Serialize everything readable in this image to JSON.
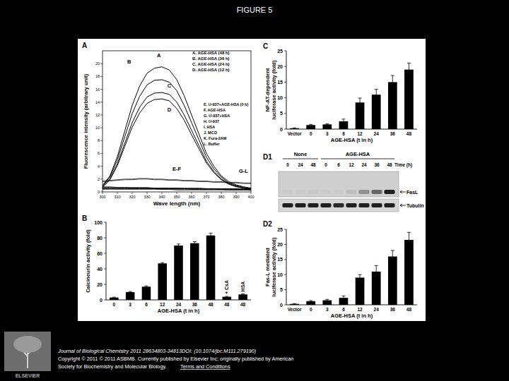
{
  "page": {
    "title": "FIGURE 5",
    "footer": [
      "Journal of Biological Chemistry 2011 28634803-34813DOI: (10.1074/jbc.M111.279190)",
      "Copyright © 2011 © 2011 ASBMB. Currently published by Elsevier Inc; originally published by American",
      "Society for Biochemistry and Molecular Biology."
    ],
    "footer_link": "Terms and Conditions",
    "logo_text": "ELSEVIER"
  },
  "chart_data": [
    {
      "type": "line",
      "panel": "A",
      "color": "#000000",
      "x_label": "Wave length (nm)",
      "y_label": "Fluorescence intensity (arbitrary unit)",
      "x": [
        300,
        305,
        310,
        315,
        320,
        325,
        330,
        335,
        340,
        345,
        350,
        355,
        360,
        365,
        370,
        375,
        380,
        385,
        390,
        395,
        400
      ],
      "xlim": [
        300,
        400
      ],
      "xticks": [
        300,
        310,
        320,
        330,
        340,
        350,
        360,
        370,
        380,
        390,
        400
      ],
      "ylim": [
        0,
        22
      ],
      "yticks": [
        0,
        2,
        4,
        6,
        8,
        10,
        12,
        14,
        16,
        18,
        20
      ],
      "series": [
        {
          "name": "A. AGE-HSA (48 h)",
          "values": [
            1.0,
            2.5,
            5.5,
            9.5,
            13.5,
            16.5,
            18.5,
            19.3,
            19.5,
            19.0,
            17.5,
            15.0,
            12.0,
            9.0,
            6.0,
            4.0,
            2.5,
            1.6,
            1.1,
            0.8,
            0.6
          ]
        },
        {
          "name": "B. AGE-HSA (36 h)",
          "values": [
            0.9,
            2.3,
            5.0,
            8.6,
            12.2,
            14.9,
            16.7,
            17.4,
            17.5,
            17.1,
            15.8,
            13.5,
            10.8,
            8.1,
            5.4,
            3.6,
            2.3,
            1.4,
            1.0,
            0.7,
            0.5
          ]
        },
        {
          "name": "C. AGE-HSA (24 h)",
          "values": [
            0.8,
            2.0,
            4.4,
            7.6,
            10.8,
            13.2,
            14.8,
            15.4,
            15.5,
            15.2,
            14.0,
            12.0,
            9.6,
            7.2,
            4.8,
            3.2,
            2.0,
            1.3,
            0.9,
            0.6,
            0.5
          ]
        },
        {
          "name": "D. AGE-HSA (12 h)",
          "values": [
            0.7,
            1.9,
            4.1,
            7.1,
            10.1,
            12.3,
            13.8,
            14.4,
            14.5,
            14.2,
            13.0,
            11.2,
            8.9,
            6.7,
            4.5,
            3.0,
            1.9,
            1.2,
            0.8,
            0.6,
            0.4
          ]
        },
        {
          "name": "E. U-937+AGE-HSA (0 h)",
          "values": [
            1.7,
            1.8,
            1.9,
            2.0,
            2.0,
            2.1,
            2.1,
            2.0,
            2.0,
            1.9,
            1.9,
            1.8,
            1.8,
            1.7,
            1.7,
            1.6,
            1.6,
            1.5,
            1.5,
            1.4,
            1.4
          ]
        },
        {
          "name": "F. AGE-HSA",
          "values": [
            1.6,
            1.7,
            1.8,
            1.9,
            1.9,
            2.0,
            2.0,
            1.9,
            1.9,
            1.8,
            1.8,
            1.7,
            1.7,
            1.6,
            1.6,
            1.5,
            1.5,
            1.4,
            1.4,
            1.3,
            1.3
          ]
        },
        {
          "name": "G. U-937+HSA",
          "values": [
            0.8,
            0.8,
            0.7,
            0.7,
            0.7,
            0.7,
            0.7,
            0.6,
            0.6,
            0.6,
            0.6,
            0.6,
            0.6,
            0.6,
            0.5,
            0.5,
            0.5,
            0.5,
            0.5,
            0.5,
            0.5
          ]
        },
        {
          "name": "H. U-937",
          "values": [
            0.7,
            0.7,
            0.7,
            0.7,
            0.6,
            0.6,
            0.6,
            0.6,
            0.6,
            0.6,
            0.6,
            0.5,
            0.5,
            0.5,
            0.5,
            0.5,
            0.5,
            0.5,
            0.5,
            0.4,
            0.4
          ]
        },
        {
          "name": "I. HSA",
          "values": [
            0.6,
            0.6,
            0.6,
            0.6,
            0.6,
            0.6,
            0.6,
            0.5,
            0.5,
            0.5,
            0.5,
            0.5,
            0.5,
            0.5,
            0.5,
            0.5,
            0.4,
            0.4,
            0.4,
            0.4,
            0.4
          ]
        },
        {
          "name": "J. MCO",
          "values": [
            0.6,
            0.6,
            0.5,
            0.5,
            0.5,
            0.5,
            0.5,
            0.5,
            0.5,
            0.5,
            0.5,
            0.5,
            0.4,
            0.4,
            0.4,
            0.4,
            0.4,
            0.4,
            0.4,
            0.4,
            0.4
          ]
        },
        {
          "name": "K. Fura-2AM",
          "values": [
            0.5,
            0.5,
            0.5,
            0.5,
            0.5,
            0.5,
            0.5,
            0.5,
            0.4,
            0.4,
            0.4,
            0.4,
            0.4,
            0.4,
            0.4,
            0.4,
            0.4,
            0.3,
            0.3,
            0.3,
            0.3
          ]
        },
        {
          "name": "L. Buffer",
          "values": [
            0.4,
            0.4,
            0.4,
            0.4,
            0.4,
            0.4,
            0.4,
            0.4,
            0.4,
            0.4,
            0.3,
            0.3,
            0.3,
            0.3,
            0.3,
            0.3,
            0.3,
            0.3,
            0.3,
            0.3,
            0.3
          ]
        }
      ],
      "annotations": [
        {
          "text": "A",
          "x": 338,
          "y": 21
        },
        {
          "text": "B",
          "x": 318,
          "y": 20
        },
        {
          "text": "C",
          "x": 345,
          "y": 16.3
        },
        {
          "text": "D",
          "x": 345,
          "y": 12.5
        },
        {
          "text": "E-F",
          "x": 350,
          "y": 3.3
        },
        {
          "text": "G-L",
          "x": 395,
          "y": 3.0
        }
      ]
    },
    {
      "type": "bar",
      "panel": "B",
      "color": "#000000",
      "x_label": "AGE-HSA (t in h)",
      "y_label": "Calcineurin activity (fold)",
      "categories": [
        "0",
        "3",
        "6",
        "12",
        "24",
        "36",
        "48",
        "48",
        "48"
      ],
      "values": [
        3,
        10,
        17,
        47,
        70,
        73,
        83,
        4,
        7
      ],
      "errors": [
        0.5,
        0.8,
        1,
        1,
        2,
        2,
        3,
        0.5,
        0.8
      ],
      "ylim": [
        0,
        100
      ],
      "yticks": [
        0,
        20,
        40,
        60,
        80,
        100
      ],
      "annotations": [
        {
          "text": "+ CsA",
          "index": 7
        },
        {
          "text": "HSA",
          "index": 8
        }
      ]
    },
    {
      "type": "bar",
      "panel": "C",
      "color": "#000000",
      "x_label": "AGE-HSA (t in h)",
      "y_label": [
        "NF-AT-dependent",
        "luciferase activity (fold)"
      ],
      "categories": [
        "Vector",
        "0",
        "3",
        "6",
        "12",
        "24",
        "36",
        "48"
      ],
      "values": [
        0.3,
        1.3,
        1.5,
        2.5,
        8.5,
        11,
        15,
        19
      ],
      "errors": [
        0.1,
        0.2,
        0.2,
        0.7,
        1.4,
        1.7,
        2.1,
        2.1
      ],
      "ylim": [
        0,
        25
      ],
      "yticks": [
        0,
        5,
        10,
        15,
        20,
        25
      ]
    },
    {
      "type": "blot",
      "panel": "D1",
      "groups": [
        {
          "label": "None",
          "first": 0,
          "last": 2
        },
        {
          "label": "AGE-HSA",
          "first": 3,
          "last": 8
        }
      ],
      "lanes": [
        "0",
        "24",
        "48",
        "0",
        "6",
        "12",
        "24",
        "36",
        "48"
      ],
      "lane_axis_label": "Time (h)",
      "bands": [
        {
          "name": "FasL",
          "intensity": [
            0.02,
            0.02,
            0.03,
            0.02,
            0.02,
            0.08,
            0.3,
            0.5,
            0.85
          ]
        },
        {
          "name": "Tubulin",
          "intensity": [
            0.85,
            0.85,
            0.85,
            0.85,
            0.8,
            0.85,
            0.85,
            0.85,
            0.85
          ]
        }
      ]
    },
    {
      "type": "bar",
      "panel": "D2",
      "color": "#000000",
      "x_label": "AGE-HSA (t in h)",
      "y_label": [
        "Fas-L mediated",
        "luciferase activity (fold)"
      ],
      "categories": [
        "Vector",
        "0",
        "3",
        "6",
        "12",
        "24",
        "36",
        "48"
      ],
      "values": [
        0.3,
        1.2,
        1.5,
        2.3,
        9,
        11,
        16,
        21.5
      ],
      "errors": [
        0.1,
        0.2,
        0.3,
        0.6,
        1,
        2,
        2,
        2.5
      ],
      "ylim": [
        0,
        25
      ],
      "yticks": [
        0,
        5,
        10,
        15,
        20,
        25
      ]
    }
  ]
}
